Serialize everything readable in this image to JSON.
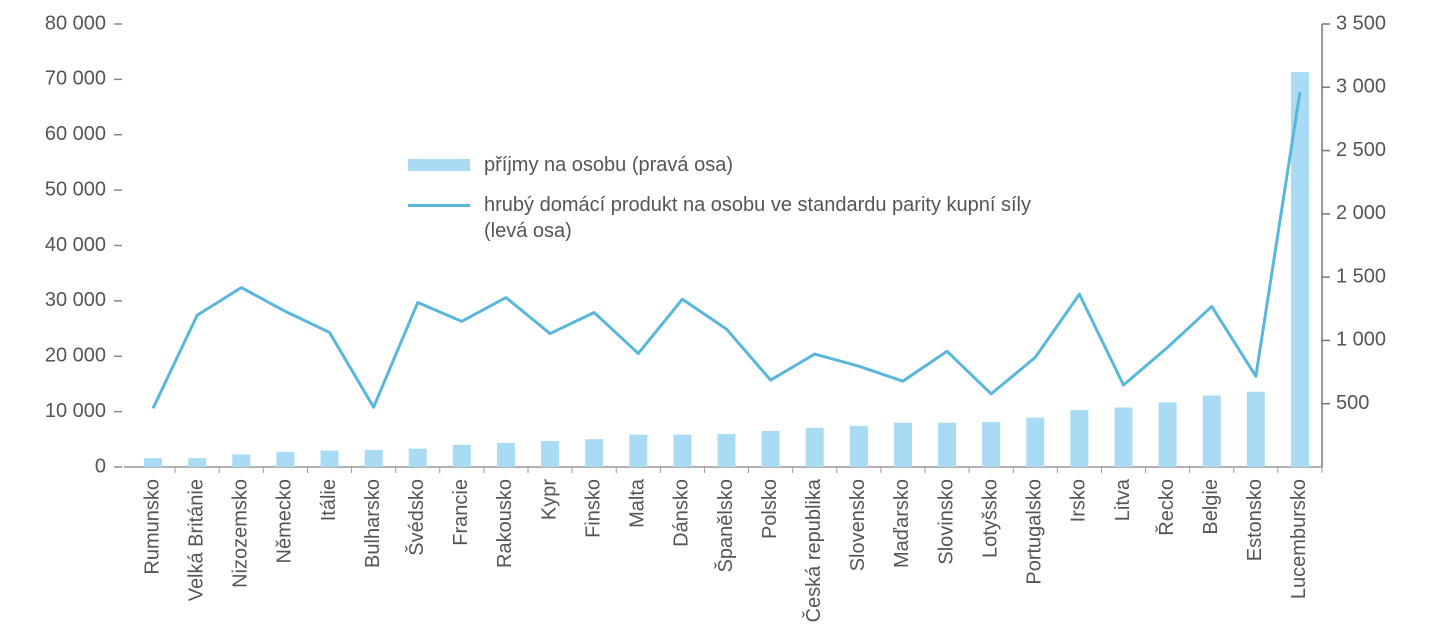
{
  "chart_data": {
    "type": "bar_line",
    "categories": [
      "Rumunsko",
      "Velká Británie",
      "Nizozemsko",
      "Německo",
      "Itálie",
      "Bulharsko",
      "Švédsko",
      "Francie",
      "Rakousko",
      "Kypr",
      "Finsko",
      "Malta",
      "Dánsko",
      "Španělsko",
      "Polsko",
      "Česká republika",
      "Slovensko",
      "Maďarsko",
      "Slovinsko",
      "Lotyšsko",
      "Portugalsko",
      "Irsko",
      "Litva",
      "Řecko",
      "Belgie",
      "Estonsko",
      "Lucembursko"
    ],
    "series": [
      {
        "name": "příjmy na osobu (pravá osa)",
        "type": "bar",
        "axis": "y2",
        "color": "#a9dcf4",
        "values": [
          70,
          70,
          100,
          120,
          130,
          135,
          145,
          175,
          190,
          205,
          220,
          255,
          255,
          260,
          285,
          310,
          325,
          350,
          350,
          355,
          390,
          450,
          470,
          510,
          565,
          595,
          3120
        ]
      },
      {
        "name": "hrubý domácí produkt na osobu ve standardu parity kupní síly (levá osa)",
        "type": "line",
        "color": "#5ab7dc",
        "values": [
          10600,
          27400,
          32400,
          28100,
          24300,
          10800,
          29700,
          26300,
          30600,
          24100,
          27900,
          20500,
          30300,
          24900,
          15700,
          20400,
          18200,
          15500,
          20900,
          13200,
          19800,
          31200,
          14800,
          21600,
          29000,
          16400,
          67700
        ]
      }
    ],
    "ylim": [
      0,
      80000
    ],
    "yticks": [
      0,
      {
        "value": 10000,
        "label": "10 000"
      },
      {
        "value": 20000,
        "label": "20 000"
      },
      {
        "value": 30000,
        "label": "30 000"
      },
      {
        "value": 40000,
        "label": "40 000"
      },
      {
        "value": 50000,
        "label": "50 000"
      },
      {
        "value": 60000,
        "label": "60 000"
      },
      {
        "value": 70000,
        "label": "70 000"
      },
      {
        "value": 80000,
        "label": "80 000"
      }
    ],
    "y2lim": [
      0,
      3500
    ],
    "y2ticks": [
      500,
      {
        "value": 1000,
        "label": "1 000"
      },
      {
        "value": 1500,
        "label": "1 500"
      },
      {
        "value": 2000,
        "label": "2 000"
      },
      {
        "value": 2500,
        "label": "2 500"
      },
      {
        "value": 3000,
        "label": "3 000"
      },
      {
        "value": 3500,
        "label": "3 500"
      }
    ]
  }
}
